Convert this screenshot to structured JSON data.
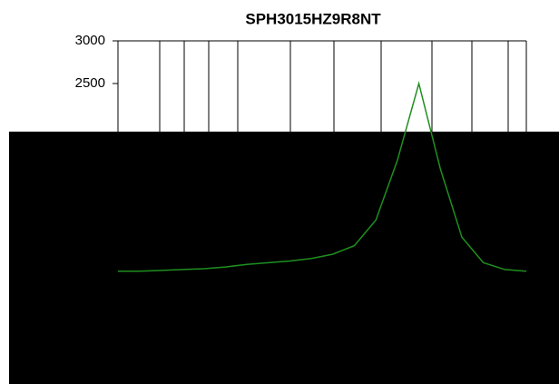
{
  "chart_data": {
    "type": "line",
    "title": "SPH3015HZ9R8NT",
    "values": [
      300,
      300,
      310,
      320,
      330,
      350,
      380,
      400,
      420,
      450,
      500,
      600,
      900,
      1600,
      2500,
      1500,
      700,
      400,
      320,
      300
    ],
    "color": "#1f8f1f",
    "ylim": [
      0,
      3000
    ],
    "yticks": [
      3000,
      2500
    ]
  }
}
